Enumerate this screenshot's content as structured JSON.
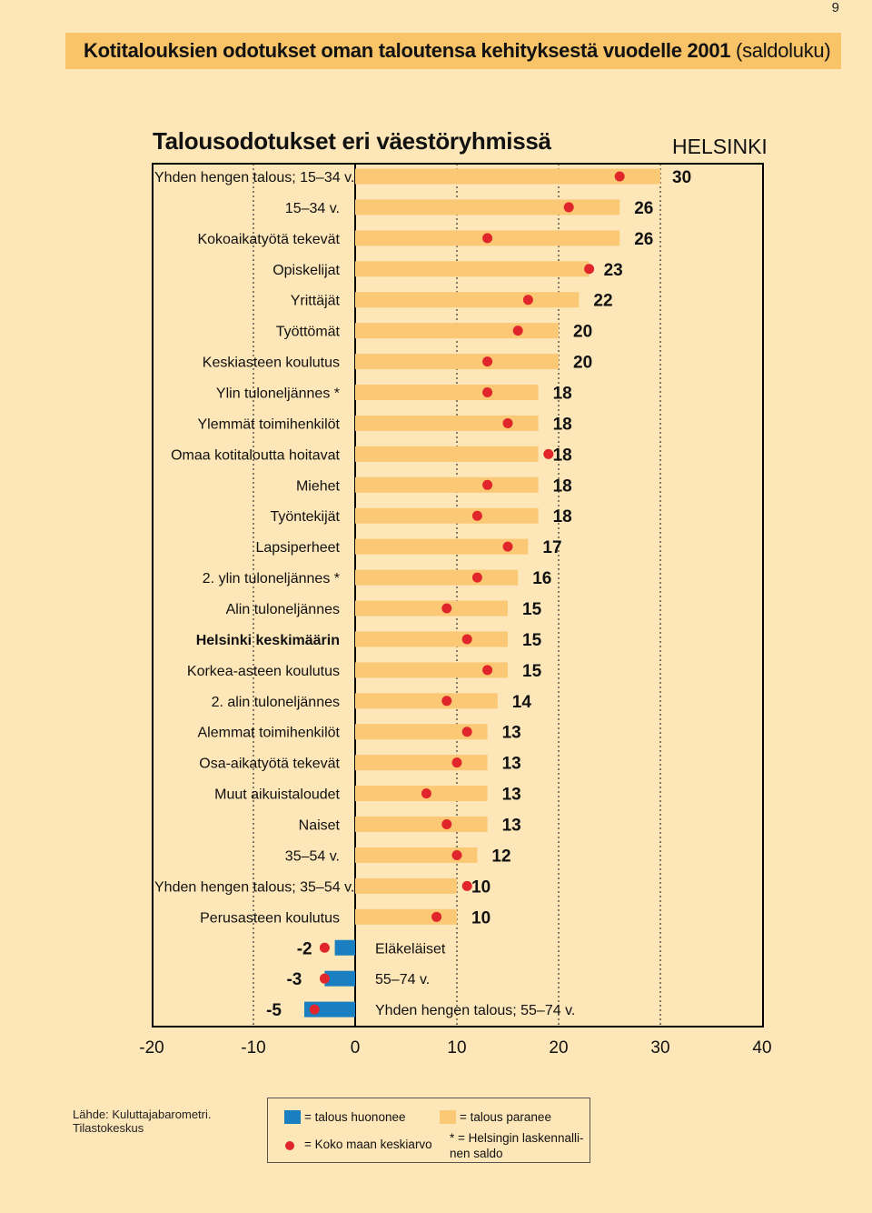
{
  "page": {
    "number": "9",
    "header_title": "Kotitalouksien odotukset oman taloutensa kehityksestä vuodelle 2001",
    "header_suffix": "(saldoluku)",
    "chart_title": "Talousodotukset eri väestöryhmissä",
    "region_label": "HELSINKI",
    "source_line1": "Lähde: Kuluttajabarometri.",
    "source_line2": "Tilastokeskus"
  },
  "legend": {
    "worse": "= talous huononee",
    "better": "= talous paranee",
    "national_avg": "= Koko maan keskiarvo",
    "note_line1": "* = Helsingin laskennalli-",
    "note_line2": "nen  saldo"
  },
  "colors": {
    "page_bg": "#fde6b8",
    "header_bg": "#f9c468",
    "positive_bar": "#fbc876",
    "negative_bar": "#1a7fc1",
    "average_dot": "#e0262b"
  },
  "chart_data": {
    "type": "bar",
    "orientation": "horizontal",
    "title": "Talousodotukset eri väestöryhmissä",
    "xlim": [
      -20,
      40
    ],
    "xticks": [
      -20,
      -10,
      0,
      10,
      20,
      30,
      40
    ],
    "tick_labels": [
      "-20",
      "-10",
      "0",
      "10",
      "20",
      "30",
      "40"
    ],
    "series": [
      {
        "name": "Helsinki (saldoluku)",
        "type": "bar"
      },
      {
        "name": "Koko maan keskiarvo",
        "type": "marker"
      }
    ],
    "categories": [
      {
        "label": "Yhden hengen talous; 15–34 v.",
        "value": 30,
        "value_label": "30",
        "national_avg": 26,
        "bold": false
      },
      {
        "label": "15–34 v.",
        "value": 26,
        "value_label": "26",
        "national_avg": 21,
        "bold": false
      },
      {
        "label": "Kokoaikatyötä tekevät",
        "value": 26,
        "value_label": "26",
        "national_avg": 13,
        "bold": false
      },
      {
        "label": "Opiskelijat",
        "value": 23,
        "value_label": "23",
        "national_avg": 23,
        "bold": false
      },
      {
        "label": "Yrittäjät",
        "value": 22,
        "value_label": "22",
        "national_avg": 17,
        "bold": false
      },
      {
        "label": "Työttömät",
        "value": 20,
        "value_label": "20",
        "national_avg": 16,
        "bold": false
      },
      {
        "label": "Keskiasteen koulutus",
        "value": 20,
        "value_label": "20",
        "national_avg": 13,
        "bold": false
      },
      {
        "label": "Ylin tuloneljännes *",
        "value": 18,
        "value_label": "18",
        "national_avg": 13,
        "bold": false
      },
      {
        "label": "Ylemmät toimihenkilöt",
        "value": 18,
        "value_label": "18",
        "national_avg": 15,
        "bold": false
      },
      {
        "label": "Omaa kotitaloutta hoitavat",
        "value": 18,
        "value_label": "18",
        "national_avg": 19,
        "bold": false
      },
      {
        "label": "Miehet",
        "value": 18,
        "value_label": "18",
        "national_avg": 13,
        "bold": false
      },
      {
        "label": "Työntekijät",
        "value": 18,
        "value_label": "18",
        "national_avg": 12,
        "bold": false
      },
      {
        "label": "Lapsiperheet",
        "value": 17,
        "value_label": "17",
        "national_avg": 15,
        "bold": false
      },
      {
        "label": "2. ylin tuloneljännes *",
        "value": 16,
        "value_label": "16",
        "national_avg": 12,
        "bold": false
      },
      {
        "label": "Alin tuloneljännes",
        "value": 15,
        "value_label": "15",
        "national_avg": 9,
        "bold": false
      },
      {
        "label": "Helsinki keskimäärin",
        "value": 15,
        "value_label": "15",
        "national_avg": 11,
        "bold": true
      },
      {
        "label": "Korkea-asteen koulutus",
        "value": 15,
        "value_label": "15",
        "national_avg": 13,
        "bold": false
      },
      {
        "label": "2. alin tuloneljännes",
        "value": 14,
        "value_label": "14",
        "national_avg": 9,
        "bold": false
      },
      {
        "label": "Alemmat toimihenkilöt",
        "value": 13,
        "value_label": "13",
        "national_avg": 11,
        "bold": false
      },
      {
        "label": "Osa-aikatyötä tekevät",
        "value": 13,
        "value_label": "13",
        "national_avg": 10,
        "bold": false
      },
      {
        "label": "Muut aikuistaloudet",
        "value": 13,
        "value_label": "13",
        "national_avg": 7,
        "bold": false
      },
      {
        "label": "Naiset",
        "value": 13,
        "value_label": "13",
        "national_avg": 9,
        "bold": false
      },
      {
        "label": "35–54 v.",
        "value": 12,
        "value_label": "12",
        "national_avg": 10,
        "bold": false
      },
      {
        "label": "Yhden hengen talous; 35–54 v.",
        "value": 10,
        "value_label": "10",
        "national_avg": 11,
        "bold": false
      },
      {
        "label": "Perusasteen koulutus",
        "value": 10,
        "value_label": "10",
        "national_avg": 8,
        "bold": false
      },
      {
        "label": "Eläkeläiset",
        "value": -2,
        "value_label": "-2",
        "national_avg": -3,
        "bold": false
      },
      {
        "label": "55–74 v.",
        "value": -3,
        "value_label": "-3",
        "national_avg": -3,
        "bold": false
      },
      {
        "label": "Yhden hengen talous; 55–74 v.",
        "value": -5,
        "value_label": "-5",
        "national_avg": -4,
        "bold": false
      }
    ]
  }
}
